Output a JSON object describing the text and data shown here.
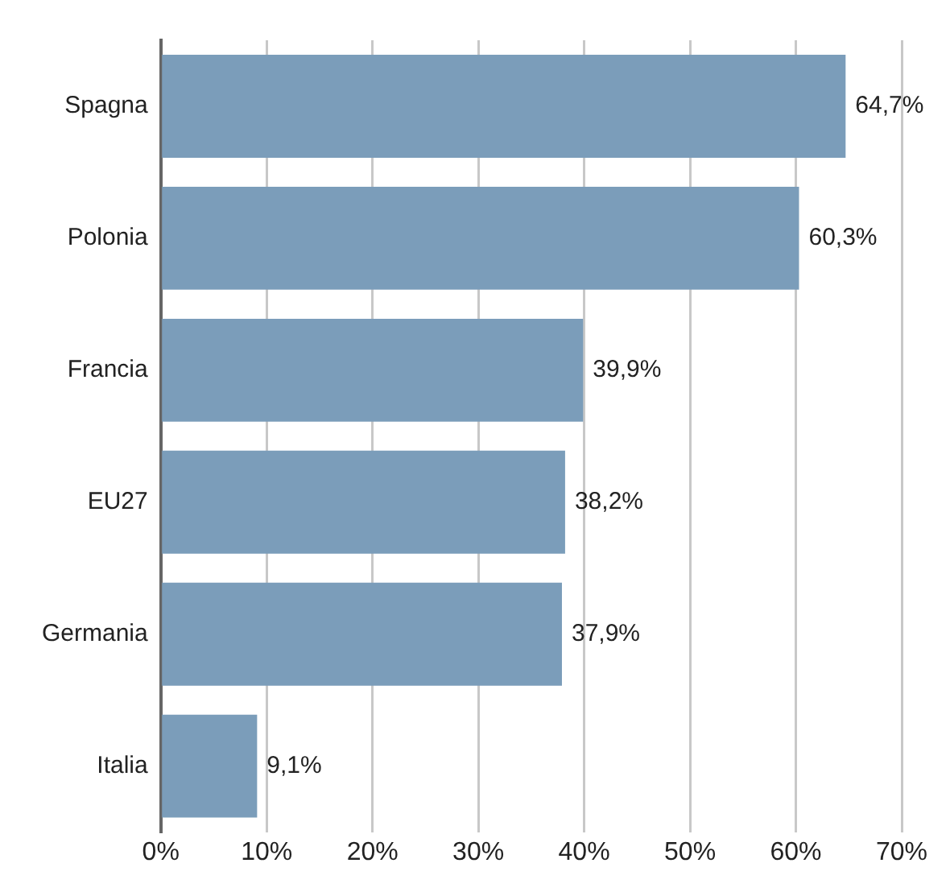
{
  "chart_data": {
    "type": "bar",
    "orientation": "horizontal",
    "categories": [
      "Spagna",
      "Polonia",
      "Francia",
      "EU27",
      "Germania",
      "Italia"
    ],
    "values": [
      64.7,
      60.3,
      39.9,
      38.2,
      37.9,
      9.1
    ],
    "value_labels": [
      "64,7%",
      "60,3%",
      "39,9%",
      "38,2%",
      "37,9%",
      "9,1%"
    ],
    "color": "#7b9dba",
    "xlim": [
      0,
      70
    ],
    "xticks": [
      {
        "value": 0,
        "label": "0%"
      },
      {
        "value": 10,
        "label": "10%"
      },
      {
        "value": 20,
        "label": "20%"
      },
      {
        "value": 30,
        "label": "30%"
      },
      {
        "value": 40,
        "label": "40%"
      },
      {
        "value": 50,
        "label": "50%"
      },
      {
        "value": 60,
        "label": "60%"
      },
      {
        "value": 70,
        "label": "70%"
      }
    ],
    "grid": "x",
    "legend": false
  }
}
